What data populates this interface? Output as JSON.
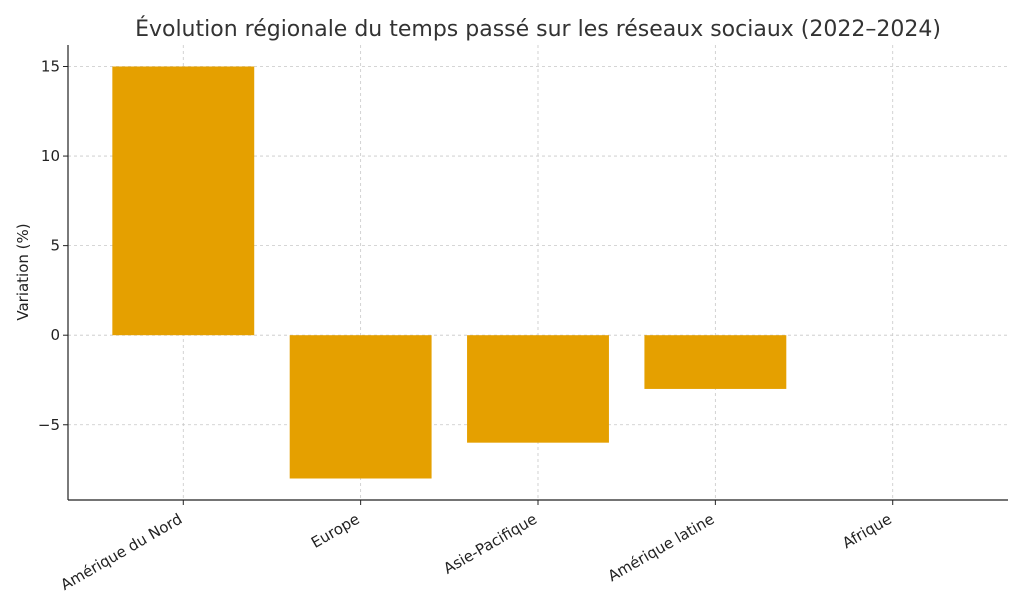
{
  "chart_data": {
    "type": "bar",
    "title": "Évolution régionale du temps passé sur les réseaux sociaux (2022–2024)",
    "xlabel": "",
    "ylabel": "Variation (%)",
    "categories": [
      "Amérique du Nord",
      "Europe",
      "Asie-Pacifique",
      "Amérique latine",
      "Afrique"
    ],
    "values": [
      15,
      -8,
      -6,
      -3,
      0
    ],
    "ylim": [
      -9.2,
      16.2
    ],
    "yticks": [
      -5,
      0,
      5,
      10,
      15
    ],
    "ytick_labels": [
      "−5",
      "0",
      "5",
      "10",
      "15"
    ],
    "bar_color": "#E5A000",
    "grid": true,
    "legend": "none"
  }
}
